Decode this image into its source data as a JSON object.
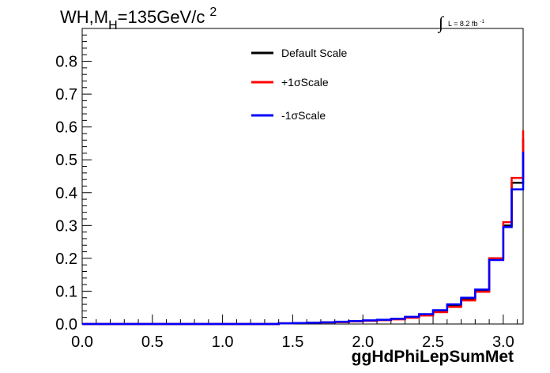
{
  "chart_data": {
    "type": "line",
    "title_main": "WH,M",
    "title_sub": "H",
    "title_rest": "=135GeV/c",
    "title_sup": "2",
    "lumi": {
      "integral_sign": "∫",
      "text": "L = 8.2 fb",
      "sup": "-1"
    },
    "xlabel": "ggHdPhiLepSumMet",
    "ylabel": "",
    "xlim": [
      0,
      3.1416
    ],
    "ylim": [
      0,
      0.9
    ],
    "x_ticks": [
      "0.0",
      "0.5",
      "1.0",
      "1.5",
      "2.0",
      "2.5",
      "3.0"
    ],
    "y_ticks": [
      "0.0",
      "0.1",
      "0.2",
      "0.3",
      "0.4",
      "0.5",
      "0.6",
      "0.7",
      "0.8"
    ],
    "grid": false,
    "legend_position": "top-center",
    "bin_edges": [
      1.4,
      1.5,
      1.6,
      1.7,
      1.8,
      1.9,
      2.0,
      2.1,
      2.2,
      2.3,
      2.4,
      2.5,
      2.6,
      2.7,
      2.8,
      2.9,
      3.0,
      3.06,
      3.1416
    ],
    "series": [
      {
        "name": "Default Scale",
        "color": "#000000",
        "values": [
          0.002,
          0.003,
          0.004,
          0.005,
          0.006,
          0.008,
          0.01,
          0.012,
          0.015,
          0.02,
          0.028,
          0.038,
          0.055,
          0.075,
          0.1,
          0.2,
          0.3,
          0.43,
          0.565
        ]
      },
      {
        "name": "+1σScale",
        "color": "#ff0000",
        "values": [
          0.002,
          0.003,
          0.004,
          0.005,
          0.006,
          0.008,
          0.01,
          0.012,
          0.014,
          0.019,
          0.026,
          0.036,
          0.052,
          0.072,
          0.098,
          0.2,
          0.31,
          0.445,
          0.59
        ]
      },
      {
        "name": "-1σScale",
        "color": "#0000ff",
        "values": [
          0.002,
          0.003,
          0.004,
          0.005,
          0.007,
          0.009,
          0.011,
          0.013,
          0.016,
          0.022,
          0.03,
          0.042,
          0.06,
          0.08,
          0.105,
          0.195,
          0.295,
          0.41,
          0.525
        ]
      }
    ]
  }
}
